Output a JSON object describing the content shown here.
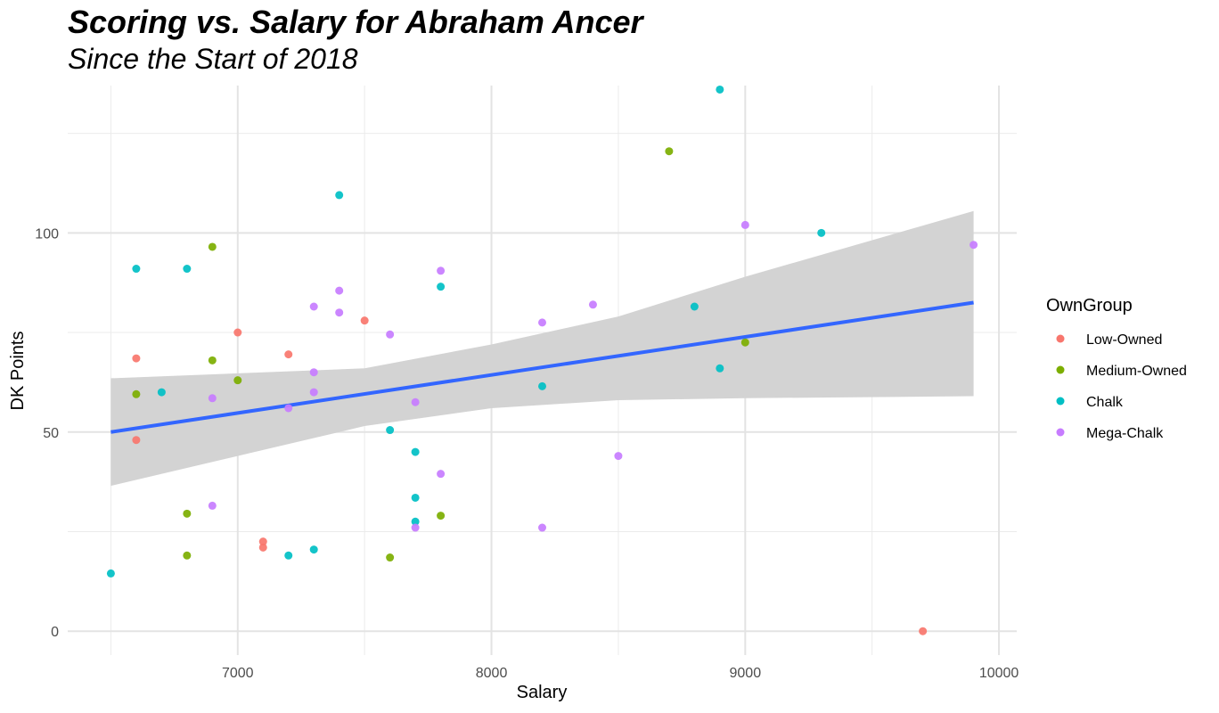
{
  "chart_data": {
    "type": "scatter",
    "title": "Scoring vs. Salary for Abraham Ancer",
    "subtitle": "Since the Start of 2018",
    "xlabel": "Salary",
    "ylabel": "DK Points",
    "xlim": [
      6330,
      10070
    ],
    "ylim": [
      -6,
      137
    ],
    "x_ticks": [
      7000,
      8000,
      9000,
      10000
    ],
    "y_ticks": [
      0,
      50,
      100
    ],
    "grid": true,
    "legend": {
      "title": "OwnGroup",
      "position": "right"
    },
    "series": [
      {
        "name": "Low-Owned",
        "color": "#F8766D",
        "points": [
          [
            6600,
            68.5
          ],
          [
            6600,
            48
          ],
          [
            7000,
            75
          ],
          [
            7100,
            22.5
          ],
          [
            7100,
            21
          ],
          [
            7200,
            69.5
          ],
          [
            7500,
            78
          ],
          [
            9700,
            0
          ]
        ]
      },
      {
        "name": "Medium-Owned",
        "color": "#7CAE00",
        "points": [
          [
            6600,
            59.5
          ],
          [
            6800,
            29.5
          ],
          [
            6800,
            19
          ],
          [
            6900,
            96.5
          ],
          [
            6900,
            68
          ],
          [
            7000,
            63
          ],
          [
            7600,
            18.5
          ],
          [
            7800,
            29
          ],
          [
            8700,
            120.5
          ],
          [
            9000,
            72.5
          ]
        ]
      },
      {
        "name": "Chalk",
        "color": "#00BFC4",
        "points": [
          [
            6500,
            14.5
          ],
          [
            6600,
            91
          ],
          [
            6700,
            60
          ],
          [
            6800,
            91
          ],
          [
            7200,
            19
          ],
          [
            7300,
            20.5
          ],
          [
            7400,
            109.5
          ],
          [
            7600,
            50.5
          ],
          [
            7700,
            45
          ],
          [
            7700,
            33.5
          ],
          [
            7700,
            27.5
          ],
          [
            7800,
            86.5
          ],
          [
            8200,
            61.5
          ],
          [
            8800,
            81.5
          ],
          [
            8900,
            136
          ],
          [
            8900,
            66
          ],
          [
            9300,
            100
          ]
        ]
      },
      {
        "name": "Mega-Chalk",
        "color": "#C77CFF",
        "points": [
          [
            6900,
            58.5
          ],
          [
            6900,
            31.5
          ],
          [
            7200,
            56
          ],
          [
            7300,
            81.5
          ],
          [
            7300,
            65
          ],
          [
            7300,
            60
          ],
          [
            7400,
            85.5
          ],
          [
            7400,
            80
          ],
          [
            7600,
            74.5
          ],
          [
            7700,
            57.5
          ],
          [
            7700,
            26
          ],
          [
            7800,
            90.5
          ],
          [
            7800,
            39.5
          ],
          [
            8200,
            77.5
          ],
          [
            8200,
            26
          ],
          [
            8400,
            82
          ],
          [
            8500,
            44
          ],
          [
            9000,
            102
          ],
          [
            9900,
            97
          ]
        ]
      }
    ],
    "trend": {
      "color": "#3366FF",
      "ribbon_color": "#D3D3D3",
      "line": [
        [
          6500,
          50
        ],
        [
          9900,
          82.5
        ]
      ],
      "upper": [
        [
          6500,
          63.5
        ],
        [
          7500,
          66
        ],
        [
          8000,
          72
        ],
        [
          8500,
          79
        ],
        [
          9000,
          89
        ],
        [
          9900,
          105.5
        ]
      ],
      "lower": [
        [
          6500,
          36.5
        ],
        [
          7000,
          44
        ],
        [
          7500,
          51.5
        ],
        [
          8000,
          56
        ],
        [
          8500,
          58
        ],
        [
          9000,
          58.5
        ],
        [
          9900,
          59
        ]
      ]
    }
  }
}
